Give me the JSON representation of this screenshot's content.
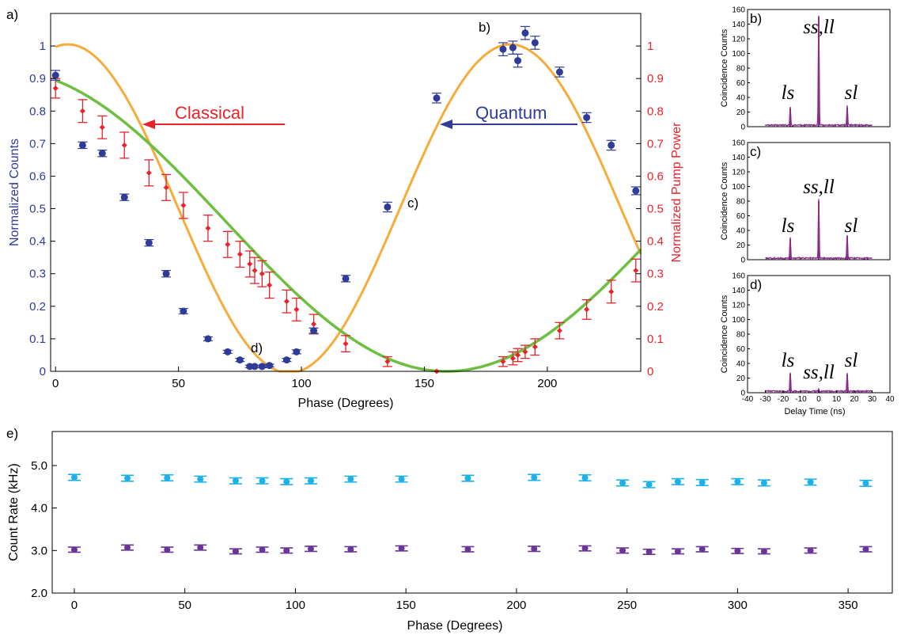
{
  "colors": {
    "quantum": "#2e3b97",
    "classical": "#e8232a",
    "orange_fit": "#f7ab3a",
    "green_fit": "#6cbf3f",
    "purple": "#8a2c8e",
    "cyan": "#1ab2e8",
    "violet": "#6a3596"
  },
  "labels": {
    "panel_a": "a)",
    "panel_b": "b)",
    "panel_c": "c)",
    "panel_d": "d)",
    "panel_e": "e)",
    "classical": "Classical",
    "quantum": "Quantum",
    "ss_ll": "ss,ll",
    "ls": "ls",
    "sl": "sl"
  },
  "chart_data": [
    {
      "id": "a",
      "type": "scatter",
      "xlabel": "Phase (Degrees)",
      "ylabel": "Normalized Counts",
      "y2label": "Normalized Pump Power",
      "xlim": [
        -2,
        238
      ],
      "ylim": [
        0,
        1.1
      ],
      "y2lim": [
        0,
        1.1
      ],
      "xticks": [
        0,
        50,
        100,
        150,
        200
      ],
      "yticks": [
        0,
        0.1,
        0.2,
        0.3,
        0.4,
        0.5,
        0.6,
        0.7,
        0.8,
        0.9,
        1.0
      ],
      "y2ticks": [
        0,
        0.1,
        0.2,
        0.3,
        0.4,
        0.5,
        0.6,
        0.7,
        0.8,
        0.9,
        1.0
      ],
      "series": [
        {
          "name": "Quantum",
          "axis": "left",
          "x": [
            0,
            11,
            19,
            28,
            38,
            45,
            52,
            62,
            70,
            75,
            79,
            81,
            84,
            87,
            94,
            98,
            105,
            118,
            135,
            155,
            182,
            186,
            188,
            191,
            195,
            205,
            216,
            226,
            236
          ],
          "y": [
            0.91,
            0.695,
            0.67,
            0.535,
            0.395,
            0.3,
            0.185,
            0.1,
            0.06,
            0.035,
            0.015,
            0.015,
            0.015,
            0.018,
            0.035,
            0.06,
            0.125,
            0.285,
            0.505,
            0.84,
            0.99,
            0.995,
            0.955,
            1.04,
            1.01,
            0.92,
            0.78,
            0.695,
            0.555
          ],
          "err": [
            0.015,
            0.01,
            0.01,
            0.01,
            0.01,
            0.01,
            0.008,
            0.006,
            0.005,
            0.005,
            0.004,
            0.004,
            0.004,
            0.004,
            0.005,
            0.006,
            0.008,
            0.01,
            0.015,
            0.015,
            0.02,
            0.02,
            0.02,
            0.02,
            0.02,
            0.015,
            0.015,
            0.015,
            0.012
          ]
        },
        {
          "name": "Classical",
          "axis": "right",
          "x": [
            0,
            11,
            19,
            28,
            38,
            45,
            52,
            62,
            70,
            75,
            79,
            81,
            84,
            87,
            94,
            98,
            105,
            118,
            135,
            155,
            182,
            186,
            188,
            191,
            195,
            205,
            216,
            226,
            236
          ],
          "y": [
            0.87,
            0.8,
            0.75,
            0.695,
            0.61,
            0.565,
            0.51,
            0.44,
            0.39,
            0.36,
            0.33,
            0.31,
            0.3,
            0.265,
            0.215,
            0.19,
            0.145,
            0.085,
            0.03,
            0.0,
            0.03,
            0.04,
            0.05,
            0.06,
            0.075,
            0.125,
            0.19,
            0.245,
            0.31
          ],
          "err": [
            0.03,
            0.035,
            0.035,
            0.04,
            0.04,
            0.04,
            0.04,
            0.04,
            0.04,
            0.04,
            0.04,
            0.04,
            0.04,
            0.04,
            0.035,
            0.035,
            0.03,
            0.025,
            0.015,
            0.0,
            0.015,
            0.02,
            0.02,
            0.02,
            0.025,
            0.025,
            0.03,
            0.035,
            0.035
          ]
        }
      ]
    },
    {
      "id": "b",
      "type": "line",
      "ylabel": "Coincidence Counts",
      "xlim": [
        -40,
        40
      ],
      "ylim": [
        0,
        160
      ],
      "yticks": [
        0,
        20,
        40,
        60,
        80,
        100,
        120,
        140,
        160
      ],
      "peaks": [
        {
          "x": -16,
          "y": 25
        },
        {
          "x": 0,
          "y": 150
        },
        {
          "x": 16,
          "y": 26
        }
      ]
    },
    {
      "id": "c",
      "type": "line",
      "ylabel": "Coincidence Counts",
      "xlim": [
        -40,
        40
      ],
      "ylim": [
        0,
        160
      ],
      "yticks": [
        0,
        20,
        40,
        60,
        80,
        100,
        120,
        140,
        160
      ],
      "peaks": [
        {
          "x": -16,
          "y": 28
        },
        {
          "x": 0,
          "y": 80
        },
        {
          "x": 16,
          "y": 32
        }
      ]
    },
    {
      "id": "d",
      "type": "line",
      "xlabel": "Delay Time (ns)",
      "ylabel": "Coincidence Counts",
      "xlim": [
        -40,
        40
      ],
      "ylim": [
        0,
        160
      ],
      "xticks": [
        -40,
        -30,
        -20,
        -10,
        0,
        10,
        20,
        30,
        40
      ],
      "yticks": [
        0,
        20,
        40,
        60,
        80,
        100,
        120,
        140,
        160
      ],
      "peaks": [
        {
          "x": -16,
          "y": 26
        },
        {
          "x": 0,
          "y": 3
        },
        {
          "x": 16,
          "y": 25
        }
      ]
    },
    {
      "id": "e",
      "type": "scatter",
      "xlabel": "Phase (Degrees)",
      "ylabel": "Count Rate (kHz)",
      "xlim": [
        -10,
        370
      ],
      "ylim": [
        2.0,
        5.8
      ],
      "xticks": [
        0,
        50,
        100,
        150,
        200,
        250,
        300,
        350
      ],
      "yticks": [
        2.0,
        3.0,
        4.0,
        5.0
      ],
      "series": [
        {
          "color": "cyan",
          "x": [
            0,
            24,
            42,
            57,
            73,
            85,
            96,
            107,
            125,
            148,
            178,
            208,
            231,
            248,
            260,
            273,
            284,
            300,
            312,
            333,
            358
          ],
          "y": [
            4.72,
            4.7,
            4.71,
            4.68,
            4.64,
            4.64,
            4.62,
            4.64,
            4.68,
            4.68,
            4.7,
            4.72,
            4.71,
            4.59,
            4.55,
            4.62,
            4.6,
            4.62,
            4.59,
            4.61,
            4.58
          ],
          "err": 0.07
        },
        {
          "color": "violet",
          "x": [
            0,
            24,
            42,
            57,
            73,
            85,
            96,
            107,
            125,
            148,
            178,
            208,
            231,
            248,
            260,
            273,
            284,
            300,
            312,
            333,
            358
          ],
          "y": [
            3.02,
            3.07,
            3.02,
            3.07,
            2.98,
            3.02,
            3.0,
            3.04,
            3.03,
            3.05,
            3.03,
            3.04,
            3.05,
            3.0,
            2.97,
            2.98,
            3.03,
            2.99,
            2.98,
            3.0,
            3.03
          ],
          "err": 0.06
        }
      ]
    }
  ]
}
